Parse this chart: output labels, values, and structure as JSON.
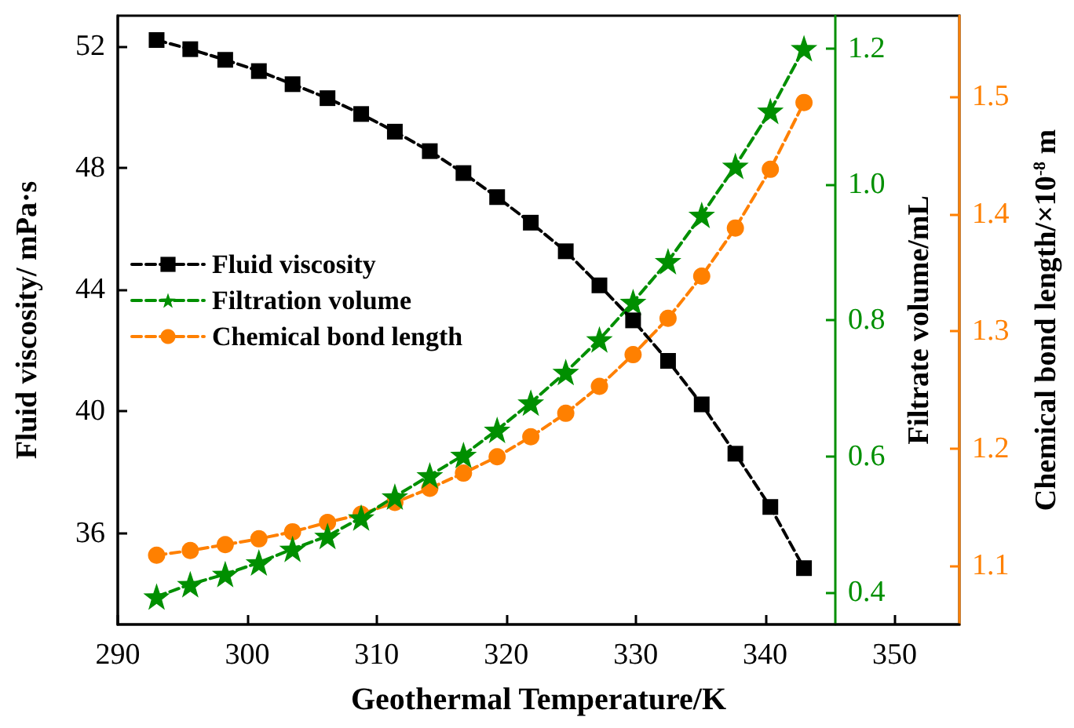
{
  "chart_data": {
    "type": "line",
    "xlabel": "Geothermal Temperature/K",
    "ylabel": "Fluid viscosity/ mPa·s",
    "y2label": "Filtrate volume/mL",
    "y3label": "Chemical bond length/×10$^{-8}$ m",
    "x": [
      293,
      295.6,
      298.3,
      300.9,
      303.5,
      306.2,
      308.8,
      311.4,
      314.1,
      316.7,
      319.3,
      321.9,
      324.6,
      327.2,
      329.8,
      332.5,
      335.1,
      337.7,
      340.4,
      343
    ],
    "series": [
      {
        "name": "Fluid viscosity",
        "color": "#000000",
        "marker": "square",
        "line_style": "dashed",
        "values": [
          52.2,
          51.9,
          51.55,
          51.18,
          50.75,
          50.29,
          49.77,
          49.19,
          48.55,
          47.83,
          47.04,
          46.2,
          45.26,
          44.14,
          42.99,
          41.66,
          40.23,
          38.61,
          36.86,
          34.85
        ]
      },
      {
        "name": "Filtration volume",
        "color": "#008f00",
        "marker": "star",
        "line_style": "dashed",
        "axis": "y2",
        "values": [
          0.394,
          0.412,
          0.427,
          0.444,
          0.464,
          0.483,
          0.51,
          0.541,
          0.572,
          0.602,
          0.639,
          0.679,
          0.724,
          0.772,
          0.827,
          0.887,
          0.955,
          1.027,
          1.108,
          1.2
        ]
      },
      {
        "name": "Chemical bond length",
        "color": "#ff8000",
        "marker": "circle",
        "line_style": "dashed",
        "axis": "y3",
        "values": [
          1.109,
          1.113,
          1.118,
          1.123,
          1.129,
          1.137,
          1.144,
          1.154,
          1.166,
          1.179,
          1.193,
          1.21,
          1.23,
          1.253,
          1.28,
          1.311,
          1.347,
          1.388,
          1.438,
          1.495
        ]
      }
    ],
    "xlim": [
      290,
      355
    ],
    "xticks": [
      290,
      300,
      310,
      320,
      330,
      340,
      350
    ],
    "ylim": [
      33,
      53
    ],
    "yticks": [
      36,
      40,
      44,
      48,
      52
    ],
    "y2lim": [
      0.353,
      1.248
    ],
    "y2ticks": [
      {
        "value": 0.4,
        "label": "0.4"
      },
      {
        "value": 0.6,
        "label": "0.6"
      },
      {
        "value": 0.8,
        "label": "0.8"
      },
      {
        "value": 1,
        "label": "1.0"
      },
      {
        "value": 1.2,
        "label": "1.2"
      }
    ],
    "y3lim": [
      1.05,
      1.569
    ],
    "y3ticks": [
      1.1,
      1.2,
      1.3,
      1.4,
      1.5
    ],
    "legend": "left",
    "grid": false
  }
}
